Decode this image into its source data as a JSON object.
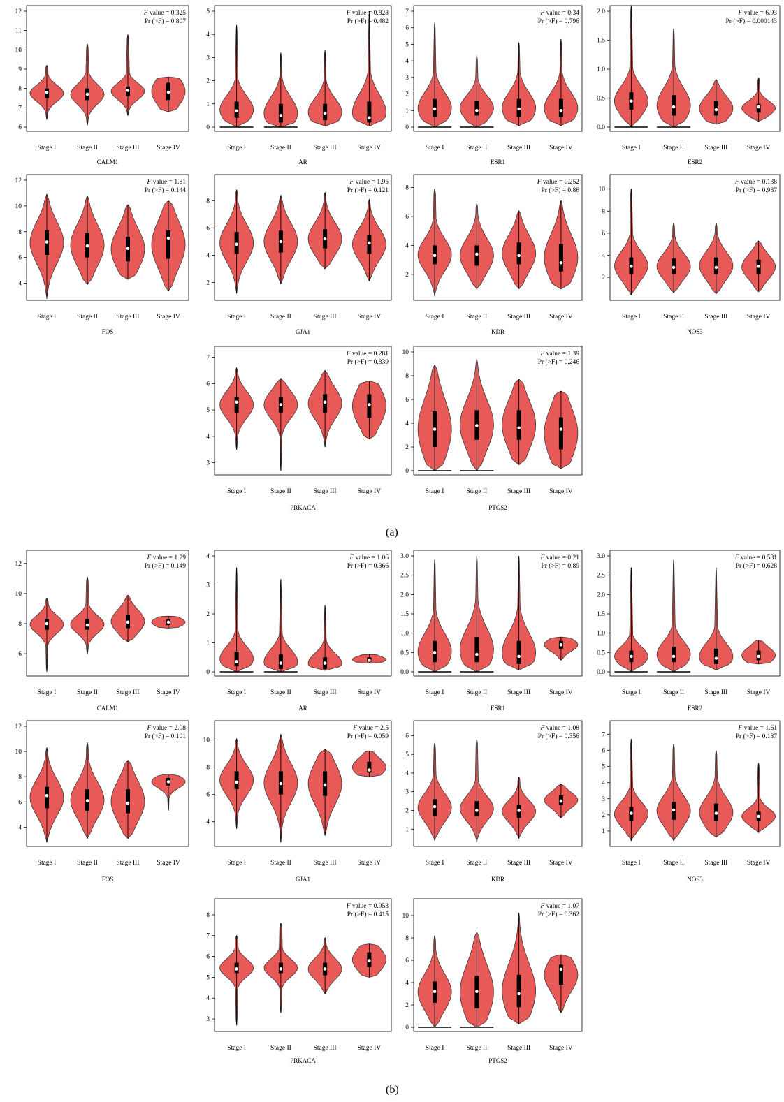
{
  "figure": {
    "panel_labels": [
      "(a)",
      "(b)"
    ],
    "stat_f_suffix": "value = ",
    "stat_pr_prefix": "Pr (>F) = ",
    "colors": {
      "violin_fill": "#e85a58",
      "violin_stroke": "#3a3a3a",
      "box": "#000000",
      "median": "#ffffff"
    }
  },
  "chart_data": [
    {
      "panel": "a",
      "type": "violin",
      "title": "CALM1",
      "categories": [
        "Stage I",
        "Stage II",
        "Stage III",
        "Stage IV"
      ],
      "ylim": [
        6,
        12
      ],
      "yticks": [
        6,
        7,
        8,
        9,
        10,
        11,
        12
      ],
      "f_value": "0.325",
      "pr_f": "0.807",
      "stats": [
        {
          "min": 6.4,
          "q1": 7.5,
          "median": 7.8,
          "q3": 8.0,
          "max": 9.2
        },
        {
          "min": 6.1,
          "q1": 7.4,
          "median": 7.7,
          "q3": 8.0,
          "max": 10.3
        },
        {
          "min": 6.6,
          "q1": 7.6,
          "median": 7.9,
          "q3": 8.1,
          "max": 10.8
        },
        {
          "min": 6.8,
          "q1": 7.4,
          "median": 7.8,
          "q3": 8.3,
          "max": 8.6
        }
      ]
    },
    {
      "panel": "a",
      "type": "violin",
      "title": "AR",
      "categories": [
        "Stage I",
        "Stage II",
        "Stage III",
        "Stage IV"
      ],
      "ylim": [
        0,
        5
      ],
      "yticks": [
        0,
        1,
        2,
        3,
        4,
        5
      ],
      "f_value": "0.823",
      "pr_f": "0.482",
      "zero_floor": [
        true,
        true,
        false,
        false
      ],
      "stats": [
        {
          "min": 0,
          "q1": 0.4,
          "median": 0.7,
          "q3": 1.1,
          "max": 4.4
        },
        {
          "min": 0,
          "q1": 0.2,
          "median": 0.5,
          "q3": 1.0,
          "max": 3.2
        },
        {
          "min": 0.05,
          "q1": 0.3,
          "median": 0.6,
          "q3": 1.0,
          "max": 3.3
        },
        {
          "min": 0.05,
          "q1": 0.2,
          "median": 0.4,
          "q3": 1.1,
          "max": 5.0
        }
      ]
    },
    {
      "panel": "a",
      "type": "violin",
      "title": "ESR1",
      "categories": [
        "Stage I",
        "Stage II",
        "Stage III",
        "Stage IV"
      ],
      "ylim": [
        0,
        7
      ],
      "yticks": [
        0,
        1,
        2,
        3,
        4,
        5,
        6,
        7
      ],
      "f_value": "0.34",
      "pr_f": "0.796",
      "zero_floor": [
        true,
        true,
        false,
        false
      ],
      "stats": [
        {
          "min": 0,
          "q1": 0.6,
          "median": 1.1,
          "q3": 1.7,
          "max": 6.3
        },
        {
          "min": 0,
          "q1": 0.7,
          "median": 1.0,
          "q3": 1.6,
          "max": 4.3
        },
        {
          "min": 0.1,
          "q1": 0.6,
          "median": 1.1,
          "q3": 1.7,
          "max": 5.1
        },
        {
          "min": 0.1,
          "q1": 0.6,
          "median": 1.0,
          "q3": 1.7,
          "max": 5.3
        }
      ]
    },
    {
      "panel": "a",
      "type": "violin",
      "title": "ESR2",
      "categories": [
        "Stage I",
        "Stage II",
        "Stage III",
        "Stage IV"
      ],
      "ylim": [
        0,
        2.0
      ],
      "yticks": [
        0.0,
        0.5,
        1.0,
        1.5,
        2.0
      ],
      "ytick_labels": [
        "0.0",
        "0.5",
        "1.0",
        "1.5",
        "2.0"
      ],
      "f_value": "6.93",
      "pr_f": "0.000143",
      "zero_floor": [
        true,
        true,
        false,
        false
      ],
      "stats": [
        {
          "min": 0,
          "q1": 0.3,
          "median": 0.45,
          "q3": 0.6,
          "max": 2.1
        },
        {
          "min": 0,
          "q1": 0.2,
          "median": 0.35,
          "q3": 0.55,
          "max": 1.7
        },
        {
          "min": 0.05,
          "q1": 0.2,
          "median": 0.3,
          "q3": 0.45,
          "max": 0.82
        },
        {
          "min": 0.1,
          "q1": 0.25,
          "median": 0.35,
          "q3": 0.4,
          "max": 0.85
        }
      ]
    },
    {
      "panel": "a",
      "type": "violin",
      "title": "FOS",
      "categories": [
        "Stage I",
        "Stage II",
        "Stage III",
        "Stage IV"
      ],
      "ylim": [
        3,
        12
      ],
      "yticks": [
        4,
        6,
        8,
        10,
        12
      ],
      "f_value": "1.81",
      "pr_f": "0.144",
      "stats": [
        {
          "min": 2.8,
          "q1": 6.2,
          "median": 7.2,
          "q3": 8.1,
          "max": 10.9
        },
        {
          "min": 3.9,
          "q1": 6.0,
          "median": 6.9,
          "q3": 7.9,
          "max": 10.8
        },
        {
          "min": 4.3,
          "q1": 5.7,
          "median": 6.7,
          "q3": 7.6,
          "max": 10.1
        },
        {
          "min": 3.4,
          "q1": 5.9,
          "median": 7.5,
          "q3": 8.1,
          "max": 10.4
        }
      ]
    },
    {
      "panel": "a",
      "type": "violin",
      "title": "GJA1",
      "categories": [
        "Stage I",
        "Stage II",
        "Stage III",
        "Stage IV"
      ],
      "ylim": [
        1,
        9.5
      ],
      "yticks": [
        2,
        4,
        6,
        8
      ],
      "f_value": "1.95",
      "pr_f": "0.121",
      "stats": [
        {
          "min": 1.2,
          "q1": 4.1,
          "median": 4.8,
          "q3": 5.7,
          "max": 8.8
        },
        {
          "min": 1.9,
          "q1": 4.2,
          "median": 5.0,
          "q3": 5.8,
          "max": 8.4
        },
        {
          "min": 3.0,
          "q1": 4.5,
          "median": 5.2,
          "q3": 5.9,
          "max": 8.6
        },
        {
          "min": 2.1,
          "q1": 4.1,
          "median": 4.9,
          "q3": 5.5,
          "max": 8.1
        }
      ]
    },
    {
      "panel": "a",
      "type": "violin",
      "title": "KDR",
      "categories": [
        "Stage I",
        "Stage II",
        "Stage III",
        "Stage IV"
      ],
      "ylim": [
        0.5,
        8.5
      ],
      "yticks": [
        2,
        4,
        6,
        8
      ],
      "f_value": "0.252",
      "pr_f": "0.86",
      "stats": [
        {
          "min": 0.5,
          "q1": 2.7,
          "median": 3.3,
          "q3": 4.0,
          "max": 7.9
        },
        {
          "min": 1.0,
          "q1": 2.6,
          "median": 3.4,
          "q3": 4.0,
          "max": 6.9
        },
        {
          "min": 1.0,
          "q1": 2.7,
          "median": 3.3,
          "q3": 4.2,
          "max": 6.4
        },
        {
          "min": 1.0,
          "q1": 2.2,
          "median": 2.8,
          "q3": 4.1,
          "max": 7.1
        }
      ]
    },
    {
      "panel": "a",
      "type": "violin",
      "title": "NOS3",
      "categories": [
        "Stage I",
        "Stage II",
        "Stage III",
        "Stage IV"
      ],
      "ylim": [
        0.3,
        10.8
      ],
      "yticks": [
        2,
        4,
        6,
        8,
        10
      ],
      "f_value": "0.138",
      "pr_f": "0.937",
      "stats": [
        {
          "min": 0.4,
          "q1": 2.3,
          "median": 3.0,
          "q3": 3.8,
          "max": 10.0
        },
        {
          "min": 0.6,
          "q1": 2.3,
          "median": 2.9,
          "q3": 3.7,
          "max": 6.9
        },
        {
          "min": 0.5,
          "q1": 2.3,
          "median": 2.9,
          "q3": 3.8,
          "max": 6.9
        },
        {
          "min": 0.7,
          "q1": 2.3,
          "median": 3.0,
          "q3": 3.6,
          "max": 5.3
        }
      ]
    },
    {
      "panel": "a",
      "type": "violin",
      "title": "PRKACA",
      "categories": [
        "Stage I",
        "Stage II",
        "Stage III",
        "Stage IV"
      ],
      "ylim": [
        2.7,
        7.2
      ],
      "yticks": [
        3,
        4,
        5,
        6,
        7
      ],
      "f_value": "0.281",
      "pr_f": "0.839",
      "stats": [
        {
          "min": 3.5,
          "q1": 4.9,
          "median": 5.3,
          "q3": 5.5,
          "max": 6.6
        },
        {
          "min": 2.7,
          "q1": 4.9,
          "median": 5.2,
          "q3": 5.5,
          "max": 6.2
        },
        {
          "min": 3.6,
          "q1": 4.9,
          "median": 5.3,
          "q3": 5.6,
          "max": 6.5
        },
        {
          "min": 3.9,
          "q1": 4.7,
          "median": 5.2,
          "q3": 5.6,
          "max": 6.1
        }
      ]
    },
    {
      "panel": "a",
      "type": "violin",
      "title": "PTGS2",
      "categories": [
        "Stage I",
        "Stage II",
        "Stage III",
        "Stage IV"
      ],
      "ylim": [
        0,
        10
      ],
      "yticks": [
        0,
        2,
        4,
        6,
        8,
        10
      ],
      "f_value": "1.39",
      "pr_f": "0.246",
      "zero_floor": [
        true,
        true,
        false,
        false
      ],
      "stats": [
        {
          "min": 0,
          "q1": 2.0,
          "median": 3.5,
          "q3": 5.0,
          "max": 8.9
        },
        {
          "min": 0,
          "q1": 2.6,
          "median": 3.8,
          "q3": 5.1,
          "max": 9.4
        },
        {
          "min": 0.5,
          "q1": 2.6,
          "median": 3.6,
          "q3": 5.1,
          "max": 7.7
        },
        {
          "min": 0.2,
          "q1": 1.8,
          "median": 3.5,
          "q3": 4.5,
          "max": 6.7
        }
      ]
    },
    {
      "panel": "b",
      "type": "violin",
      "title": "CALM1",
      "categories": [
        "Stage I",
        "Stage II",
        "Stage III",
        "Stage IV"
      ],
      "ylim": [
        4.8,
        12.5
      ],
      "yticks": [
        6,
        8,
        10,
        12
      ],
      "f_value": "1.79",
      "pr_f": "0.149",
      "stats": [
        {
          "min": 4.8,
          "q1": 7.6,
          "median": 8.0,
          "q3": 8.3,
          "max": 9.7
        },
        {
          "min": 6.0,
          "q1": 7.6,
          "median": 7.9,
          "q3": 8.3,
          "max": 11.1
        },
        {
          "min": 6.8,
          "q1": 7.7,
          "median": 8.1,
          "q3": 8.6,
          "max": 9.9
        },
        {
          "min": 7.7,
          "q1": 7.9,
          "median": 8.1,
          "q3": 8.3,
          "max": 8.5
        }
      ]
    },
    {
      "panel": "b",
      "type": "violin",
      "title": "AR",
      "categories": [
        "Stage I",
        "Stage II",
        "Stage III",
        "Stage IV"
      ],
      "ylim": [
        0,
        4
      ],
      "yticks": [
        0,
        1,
        2,
        3,
        4
      ],
      "f_value": "1.06",
      "pr_f": "0.366",
      "zero_floor": [
        true,
        true,
        false,
        false
      ],
      "stats": [
        {
          "min": 0,
          "q1": 0.2,
          "median": 0.35,
          "q3": 0.7,
          "max": 3.6
        },
        {
          "min": 0,
          "q1": 0.1,
          "median": 0.3,
          "q3": 0.6,
          "max": 3.2
        },
        {
          "min": 0.05,
          "q1": 0.1,
          "median": 0.3,
          "q3": 0.5,
          "max": 2.3
        },
        {
          "min": 0.3,
          "q1": 0.35,
          "median": 0.4,
          "q3": 0.5,
          "max": 0.6
        }
      ]
    },
    {
      "panel": "b",
      "type": "violin",
      "title": "ESR1",
      "categories": [
        "Stage I",
        "Stage II",
        "Stage III",
        "Stage IV"
      ],
      "ylim": [
        0,
        3.0
      ],
      "yticks": [
        0.0,
        0.5,
        1.0,
        1.5,
        2.0,
        2.5,
        3.0
      ],
      "ytick_labels": [
        "0.0",
        "0.5",
        "1.0",
        "1.5",
        "2.0",
        "2.5",
        "3.0"
      ],
      "f_value": "0.21",
      "pr_f": "0.89",
      "zero_floor": [
        true,
        true,
        false,
        false
      ],
      "stats": [
        {
          "min": 0,
          "q1": 0.25,
          "median": 0.5,
          "q3": 0.8,
          "max": 2.9
        },
        {
          "min": 0,
          "q1": 0.25,
          "median": 0.45,
          "q3": 0.9,
          "max": 3.0
        },
        {
          "min": 0.05,
          "q1": 0.2,
          "median": 0.4,
          "q3": 0.8,
          "max": 3.0
        },
        {
          "min": 0.3,
          "q1": 0.6,
          "median": 0.7,
          "q3": 0.8,
          "max": 0.9
        }
      ]
    },
    {
      "panel": "b",
      "type": "violin",
      "title": "ESR2",
      "categories": [
        "Stage I",
        "Stage II",
        "Stage III",
        "Stage IV"
      ],
      "ylim": [
        0,
        3.0
      ],
      "yticks": [
        0.0,
        0.5,
        1.0,
        1.5,
        2.0,
        2.5,
        3.0
      ],
      "ytick_labels": [
        "0.0",
        "0.5",
        "1.0",
        "1.5",
        "2.0",
        "2.5",
        "3.0"
      ],
      "f_value": "0.581",
      "pr_f": "0.628",
      "zero_floor": [
        true,
        true,
        false,
        false
      ],
      "stats": [
        {
          "min": 0,
          "q1": 0.25,
          "median": 0.4,
          "q3": 0.55,
          "max": 2.7
        },
        {
          "min": 0,
          "q1": 0.25,
          "median": 0.4,
          "q3": 0.65,
          "max": 2.9
        },
        {
          "min": 0.05,
          "q1": 0.2,
          "median": 0.35,
          "q3": 0.6,
          "max": 2.7
        },
        {
          "min": 0.2,
          "q1": 0.3,
          "median": 0.4,
          "q3": 0.55,
          "max": 0.82
        }
      ]
    },
    {
      "panel": "b",
      "type": "violin",
      "title": "FOS",
      "categories": [
        "Stage I",
        "Stage II",
        "Stage III",
        "Stage IV"
      ],
      "ylim": [
        2.8,
        12
      ],
      "yticks": [
        4,
        6,
        8,
        10,
        12
      ],
      "f_value": "2.08",
      "pr_f": "0.101",
      "stats": [
        {
          "min": 2.8,
          "q1": 5.5,
          "median": 6.5,
          "q3": 7.2,
          "max": 10.3
        },
        {
          "min": 3.1,
          "q1": 5.3,
          "median": 6.1,
          "q3": 7.0,
          "max": 10.7
        },
        {
          "min": 3.1,
          "q1": 5.1,
          "median": 5.9,
          "q3": 7.0,
          "max": 9.3
        },
        {
          "min": 5.3,
          "q1": 7.3,
          "median": 7.6,
          "q3": 7.9,
          "max": 8.2
        }
      ]
    },
    {
      "panel": "b",
      "type": "violin",
      "title": "GJA1",
      "categories": [
        "Stage I",
        "Stage II",
        "Stage III",
        "Stage IV"
      ],
      "ylim": [
        2.5,
        11
      ],
      "yticks": [
        4,
        6,
        8,
        10
      ],
      "f_value": "2.5",
      "pr_f": "0.059",
      "stats": [
        {
          "min": 3.5,
          "q1": 6.4,
          "median": 6.9,
          "q3": 7.7,
          "max": 10.1
        },
        {
          "min": 2.5,
          "q1": 6.0,
          "median": 6.8,
          "q3": 7.7,
          "max": 10.4
        },
        {
          "min": 3.0,
          "q1": 5.9,
          "median": 6.7,
          "q3": 7.7,
          "max": 9.3
        },
        {
          "min": 7.3,
          "q1": 7.6,
          "median": 7.8,
          "q3": 8.4,
          "max": 9.2
        }
      ]
    },
    {
      "panel": "b",
      "type": "violin",
      "title": "KDR",
      "categories": [
        "Stage I",
        "Stage II",
        "Stage III",
        "Stage IV"
      ],
      "ylim": [
        0.3,
        6.5
      ],
      "yticks": [
        1,
        2,
        3,
        4,
        5,
        6
      ],
      "f_value": "1.08",
      "pr_f": "0.356",
      "stats": [
        {
          "min": 0.4,
          "q1": 1.7,
          "median": 2.2,
          "q3": 2.6,
          "max": 5.6
        },
        {
          "min": 0.3,
          "q1": 1.7,
          "median": 2.0,
          "q3": 2.5,
          "max": 5.8
        },
        {
          "min": 0.5,
          "q1": 1.6,
          "median": 2.0,
          "q3": 2.3,
          "max": 3.8
        },
        {
          "min": 1.6,
          "q1": 2.3,
          "median": 2.5,
          "q3": 2.8,
          "max": 3.4
        }
      ]
    },
    {
      "panel": "b",
      "type": "violin",
      "title": "NOS3",
      "categories": [
        "Stage I",
        "Stage II",
        "Stage III",
        "Stage IV"
      ],
      "ylim": [
        0.3,
        7.5
      ],
      "yticks": [
        1,
        2,
        3,
        4,
        5,
        6,
        7
      ],
      "f_value": "1.61",
      "pr_f": "0.187",
      "stats": [
        {
          "min": 0.4,
          "q1": 1.6,
          "median": 2.1,
          "q3": 2.5,
          "max": 6.7
        },
        {
          "min": 0.4,
          "q1": 1.7,
          "median": 2.3,
          "q3": 2.8,
          "max": 6.4
        },
        {
          "min": 0.6,
          "q1": 1.6,
          "median": 2.1,
          "q3": 2.7,
          "max": 6.0
        },
        {
          "min": 0.9,
          "q1": 1.6,
          "median": 1.9,
          "q3": 2.2,
          "max": 5.2
        }
      ]
    },
    {
      "panel": "b",
      "type": "violin",
      "title": "PRKACA",
      "categories": [
        "Stage I",
        "Stage II",
        "Stage III",
        "Stage IV"
      ],
      "ylim": [
        2.6,
        8.5
      ],
      "yticks": [
        3,
        4,
        5,
        6,
        7,
        8
      ],
      "f_value": "0.953",
      "pr_f": "0.415",
      "stats": [
        {
          "min": 2.7,
          "q1": 5.2,
          "median": 5.4,
          "q3": 5.7,
          "max": 7.0
        },
        {
          "min": 3.3,
          "q1": 5.2,
          "median": 5.4,
          "q3": 5.7,
          "max": 7.6
        },
        {
          "min": 4.2,
          "q1": 5.1,
          "median": 5.4,
          "q3": 5.7,
          "max": 6.9
        },
        {
          "min": 5.0,
          "q1": 5.5,
          "median": 5.8,
          "q3": 6.2,
          "max": 6.6
        }
      ]
    },
    {
      "panel": "b",
      "type": "violin",
      "title": "PTGS2",
      "categories": [
        "Stage I",
        "Stage II",
        "Stage III",
        "Stage IV"
      ],
      "ylim": [
        0,
        11
      ],
      "yticks": [
        0,
        2,
        4,
        6,
        8,
        10
      ],
      "f_value": "1.07",
      "pr_f": "0.362",
      "zero_floor": [
        true,
        true,
        false,
        false
      ],
      "stats": [
        {
          "min": 0,
          "q1": 2.2,
          "median": 3.2,
          "q3": 4.1,
          "max": 8.2
        },
        {
          "min": 0,
          "q1": 1.7,
          "median": 3.2,
          "q3": 4.6,
          "max": 8.5
        },
        {
          "min": 0.3,
          "q1": 1.8,
          "median": 3.0,
          "q3": 4.7,
          "max": 10.2
        },
        {
          "min": 1.3,
          "q1": 3.8,
          "median": 5.2,
          "q3": 5.6,
          "max": 6.5
        }
      ]
    }
  ]
}
